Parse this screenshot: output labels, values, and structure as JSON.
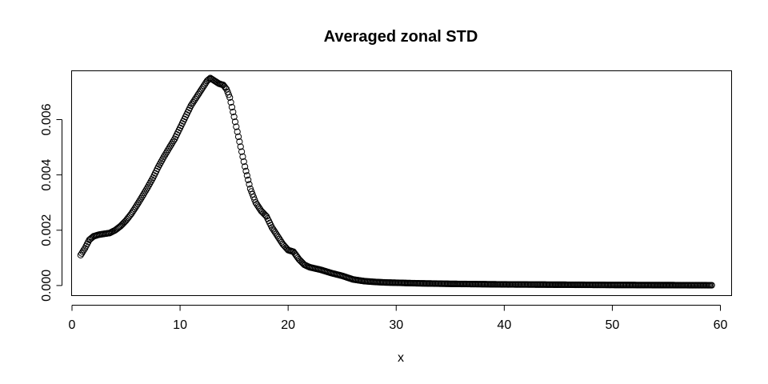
{
  "chart_data": {
    "type": "scatter",
    "title": "Averaged zonal STD",
    "xlabel": "x",
    "ylabel": "",
    "xlim": [
      0,
      61
    ],
    "ylim": [
      -0.00035,
      0.00775
    ],
    "x_ticks": [
      0,
      10,
      20,
      30,
      40,
      50,
      60
    ],
    "x_tick_labels": [
      "0",
      "10",
      "20",
      "30",
      "40",
      "50",
      "60"
    ],
    "y_ticks": [
      0,
      0.002,
      0.004,
      0.006
    ],
    "y_tick_labels": [
      "0.000",
      "0.002",
      "0.004",
      "0.006"
    ],
    "grid": false,
    "marker": "open-circle",
    "color": "#000000",
    "x_range": [
      0.8,
      59.2
    ],
    "x_step": 0.1,
    "curve_points": [
      [
        0.8,
        0.0011
      ],
      [
        1.2,
        0.00135
      ],
      [
        1.6,
        0.00165
      ],
      [
        2.0,
        0.00178
      ],
      [
        2.5,
        0.00184
      ],
      [
        3.0,
        0.00187
      ],
      [
        3.5,
        0.0019
      ],
      [
        4.0,
        0.002
      ],
      [
        4.5,
        0.00215
      ],
      [
        5.0,
        0.00235
      ],
      [
        5.5,
        0.0026
      ],
      [
        6.0,
        0.0029
      ],
      [
        6.5,
        0.00322
      ],
      [
        7.0,
        0.00355
      ],
      [
        7.5,
        0.0039
      ],
      [
        8.0,
        0.0043
      ],
      [
        8.5,
        0.00465
      ],
      [
        9.0,
        0.00498
      ],
      [
        9.5,
        0.0053
      ],
      [
        10.0,
        0.0057
      ],
      [
        10.5,
        0.0061
      ],
      [
        11.0,
        0.0065
      ],
      [
        11.5,
        0.0068
      ],
      [
        12.0,
        0.0071
      ],
      [
        12.5,
        0.0074
      ],
      [
        12.8,
        0.0075
      ],
      [
        13.2,
        0.0074
      ],
      [
        13.6,
        0.0073
      ],
      [
        14.0,
        0.00725
      ],
      [
        14.3,
        0.0071
      ],
      [
        14.6,
        0.0068
      ],
      [
        15.0,
        0.0061
      ],
      [
        15.5,
        0.0052
      ],
      [
        16.0,
        0.0043
      ],
      [
        16.5,
        0.0035
      ],
      [
        17.0,
        0.003
      ],
      [
        17.5,
        0.0027
      ],
      [
        18.0,
        0.0025
      ],
      [
        18.5,
        0.0021
      ],
      [
        19.0,
        0.0018
      ],
      [
        19.5,
        0.0015
      ],
      [
        20.0,
        0.00128
      ],
      [
        20.5,
        0.00122
      ],
      [
        21.0,
        0.00095
      ],
      [
        21.5,
        0.00075
      ],
      [
        22.0,
        0.00066
      ],
      [
        23.0,
        0.00057
      ],
      [
        24.0,
        0.00045
      ],
      [
        25.0,
        0.00035
      ],
      [
        26.0,
        0.00022
      ],
      [
        27.0,
        0.00016
      ],
      [
        28.0,
        0.00013
      ],
      [
        29.0,
        0.00011
      ],
      [
        30.0,
        0.0001
      ],
      [
        32.0,
        8e-05
      ],
      [
        35.0,
        6e-05
      ],
      [
        40.0,
        4e-05
      ],
      [
        45.0,
        3e-05
      ],
      [
        50.0,
        2e-05
      ],
      [
        55.0,
        1.5e-05
      ],
      [
        59.2,
        1e-05
      ]
    ]
  }
}
